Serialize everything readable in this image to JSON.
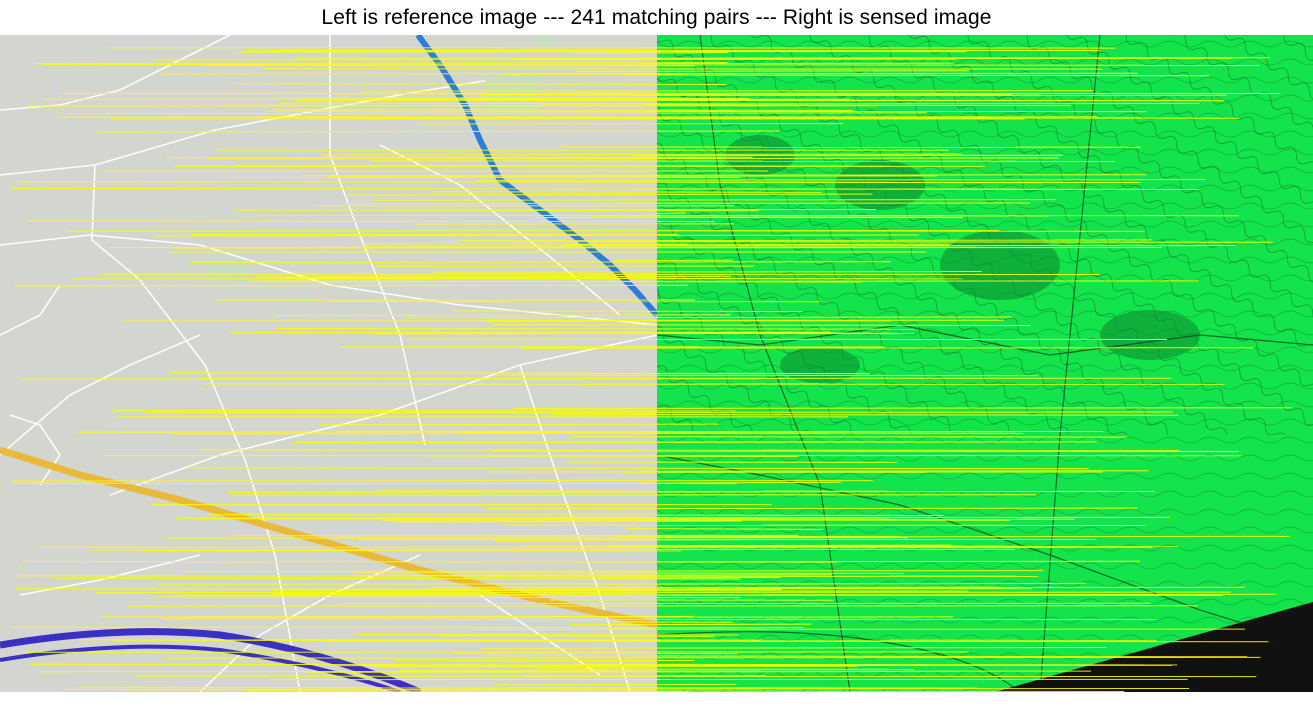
{
  "title": "Left is reference image --- 241 matching pairs --- Right is sensed image",
  "figure": {
    "reference_panel": "map",
    "sensed_panel": "terrain",
    "match_line_color": "#ffff00",
    "map_background_color": "#d3d5cf",
    "terrain_color": "#13e44b",
    "river_color": "#2b7ed8",
    "highway_color": "#e9b93a",
    "road_color_blue": "#3b2fc4",
    "void_color": "#111111"
  }
}
